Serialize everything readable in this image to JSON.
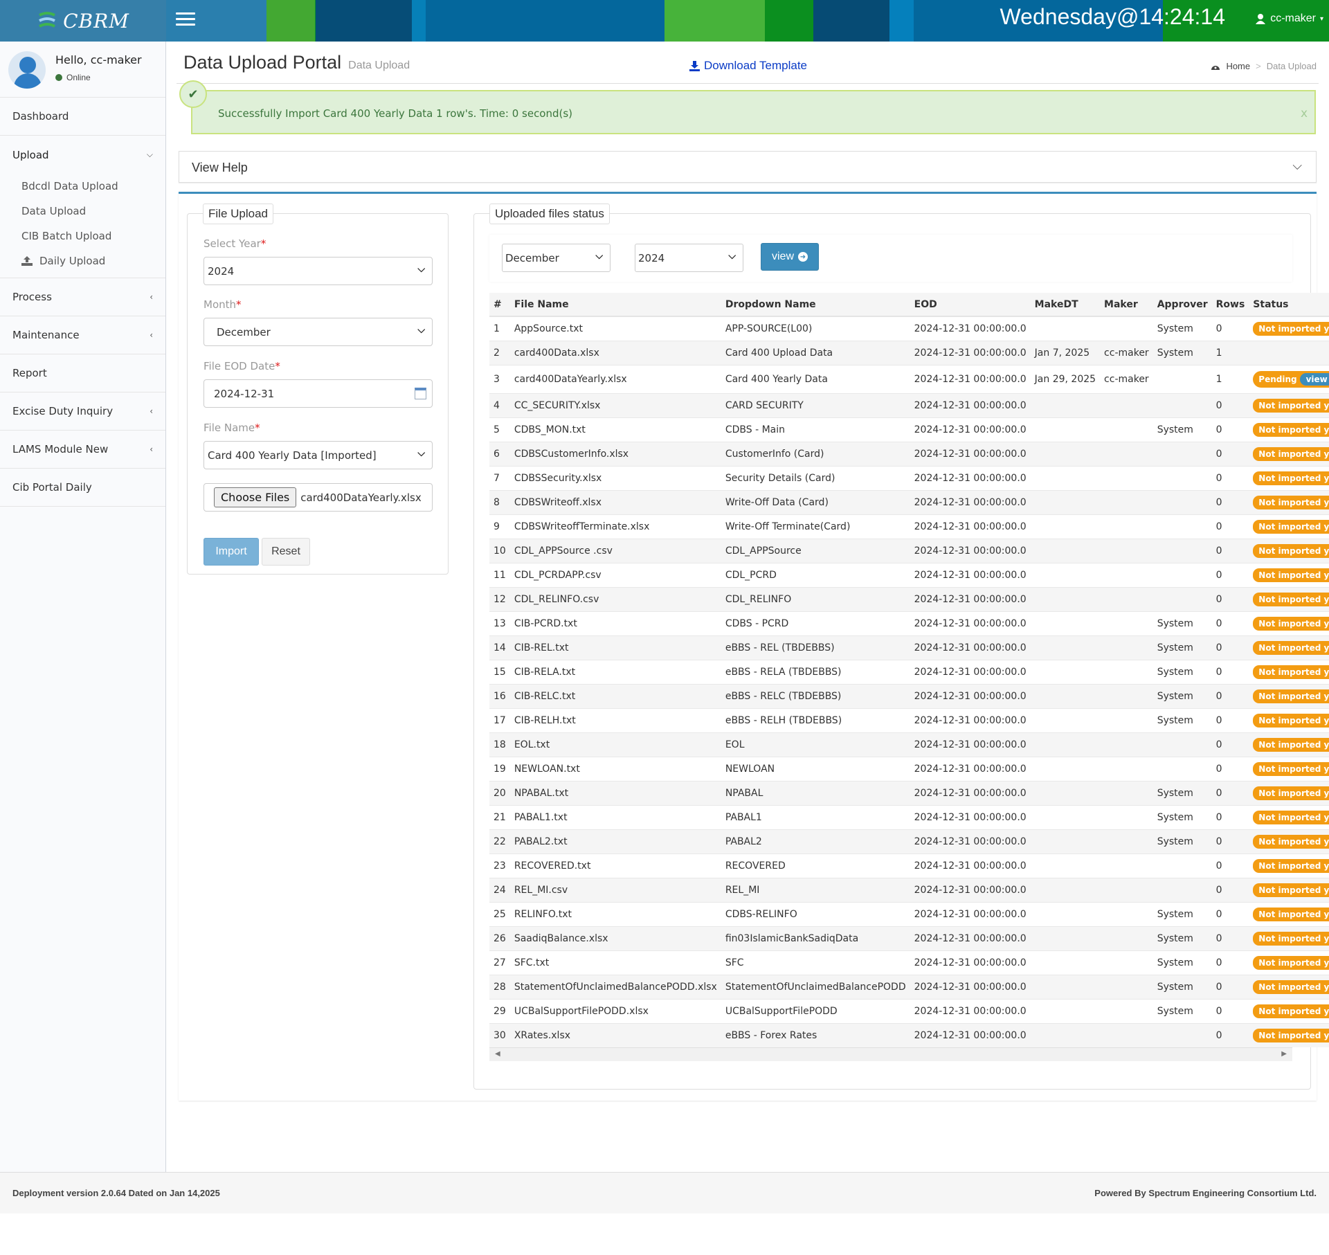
{
  "app": {
    "logo_text": "CBRM",
    "clock": "Wednesday@14:24:14",
    "user": "cc-maker"
  },
  "sidebar": {
    "greeting": "Hello, cc-maker",
    "status": "Online",
    "items": [
      {
        "label": "Dashboard"
      },
      {
        "label": "Upload"
      },
      {
        "label": "Process"
      },
      {
        "label": "Maintenance"
      },
      {
        "label": "Report"
      },
      {
        "label": "Excise Duty Inquiry"
      },
      {
        "label": "LAMS Module New"
      },
      {
        "label": "Cib Portal Daily"
      }
    ],
    "upload_sub": [
      {
        "label": "Bdcdl Data Upload"
      },
      {
        "label": "Data Upload"
      },
      {
        "label": "CIB Batch Upload"
      },
      {
        "label": "Daily Upload"
      }
    ]
  },
  "header": {
    "title": "Data Upload Portal",
    "subtitle": "Data Upload",
    "download": "Download Template",
    "breadcrumb_home": "Home",
    "breadcrumb_sep": ">",
    "breadcrumb_current": "Data Upload"
  },
  "alert": {
    "message": "Successfully Import Card 400 Yearly Data 1 row's. Time: 0 second(s)",
    "close": "x"
  },
  "help": {
    "label": "View Help"
  },
  "file_upload": {
    "legend": "File Upload",
    "year_label": "Select Year",
    "year_value": "2024",
    "month_label": "Month",
    "month_value": "December",
    "eod_label": "File EOD Date",
    "eod_value": "2024-12-31",
    "filename_label": "File Name",
    "filename_value": "Card 400 Yearly Data [Imported]",
    "choose_label": "Choose Files",
    "chosen_file": "card400DataYearly.xlsx",
    "required_mark": "*",
    "import_label": "Import",
    "reset_label": "Reset"
  },
  "status_panel": {
    "legend": "Uploaded files status",
    "month_value": "December",
    "year_value": "2024",
    "view_label": "view"
  },
  "table": {
    "headers": [
      "#",
      "File Name",
      "Dropdown Name",
      "EOD",
      "MakeDT",
      "Maker",
      "Approver",
      "Rows",
      "Status"
    ],
    "rows": [
      [
        "1",
        "AppSource.txt",
        "APP-SOURCE(L00)",
        "2024-12-31 00:00:00.0",
        "",
        "",
        "System",
        "0",
        "Not imported yet"
      ],
      [
        "2",
        "card400Data.xlsx",
        "Card 400 Upload Data",
        "2024-12-31 00:00:00.0",
        "Jan 7, 2025",
        "cc-maker",
        "System",
        "1",
        ""
      ],
      [
        "3",
        "card400DataYearly.xlsx",
        "Card 400 Yearly Data",
        "2024-12-31 00:00:00.0",
        "Jan 29, 2025",
        "cc-maker",
        "",
        "1",
        "Pending|view"
      ],
      [
        "4",
        "CC_SECURITY.xlsx",
        "CARD SECURITY",
        "2024-12-31 00:00:00.0",
        "",
        "",
        "",
        "0",
        "Not imported yet"
      ],
      [
        "5",
        "CDBS_MON.txt",
        "CDBS - Main",
        "2024-12-31 00:00:00.0",
        "",
        "",
        "System",
        "0",
        "Not imported yet"
      ],
      [
        "6",
        "CDBSCustomerInfo.xlsx",
        "CustomerInfo (Card)",
        "2024-12-31 00:00:00.0",
        "",
        "",
        "",
        "0",
        "Not imported yet"
      ],
      [
        "7",
        "CDBSSecurity.xlsx",
        "Security Details (Card)",
        "2024-12-31 00:00:00.0",
        "",
        "",
        "",
        "0",
        "Not imported yet"
      ],
      [
        "8",
        "CDBSWriteoff.xlsx",
        "Write-Off Data (Card)",
        "2024-12-31 00:00:00.0",
        "",
        "",
        "",
        "0",
        "Not imported yet"
      ],
      [
        "9",
        "CDBSWriteoffTerminate.xlsx",
        "Write-Off Terminate(Card)",
        "2024-12-31 00:00:00.0",
        "",
        "",
        "",
        "0",
        "Not imported yet"
      ],
      [
        "10",
        "CDL_APPSource .csv",
        "CDL_APPSource",
        "2024-12-31 00:00:00.0",
        "",
        "",
        "",
        "0",
        "Not imported yet"
      ],
      [
        "11",
        "CDL_PCRDAPP.csv",
        "CDL_PCRD",
        "2024-12-31 00:00:00.0",
        "",
        "",
        "",
        "0",
        "Not imported yet"
      ],
      [
        "12",
        "CDL_RELINFO.csv",
        "CDL_RELINFO",
        "2024-12-31 00:00:00.0",
        "",
        "",
        "",
        "0",
        "Not imported yet"
      ],
      [
        "13",
        "CIB-PCRD.txt",
        "CDBS - PCRD",
        "2024-12-31 00:00:00.0",
        "",
        "",
        "System",
        "0",
        "Not imported yet"
      ],
      [
        "14",
        "CIB-REL.txt",
        "eBBS - REL (TBDEBBS)",
        "2024-12-31 00:00:00.0",
        "",
        "",
        "System",
        "0",
        "Not imported yet"
      ],
      [
        "15",
        "CIB-RELA.txt",
        "eBBS - RELA (TBDEBBS)",
        "2024-12-31 00:00:00.0",
        "",
        "",
        "System",
        "0",
        "Not imported yet"
      ],
      [
        "16",
        "CIB-RELC.txt",
        "eBBS - RELC (TBDEBBS)",
        "2024-12-31 00:00:00.0",
        "",
        "",
        "System",
        "0",
        "Not imported yet"
      ],
      [
        "17",
        "CIB-RELH.txt",
        "eBBS - RELH (TBDEBBS)",
        "2024-12-31 00:00:00.0",
        "",
        "",
        "System",
        "0",
        "Not imported yet"
      ],
      [
        "18",
        "EOL.txt",
        "EOL",
        "2024-12-31 00:00:00.0",
        "",
        "",
        "",
        "0",
        "Not imported yet"
      ],
      [
        "19",
        "NEWLOAN.txt",
        "NEWLOAN",
        "2024-12-31 00:00:00.0",
        "",
        "",
        "",
        "0",
        "Not imported yet"
      ],
      [
        "20",
        "NPABAL.txt",
        "NPABAL",
        "2024-12-31 00:00:00.0",
        "",
        "",
        "System",
        "0",
        "Not imported yet"
      ],
      [
        "21",
        "PABAL1.txt",
        "PABAL1",
        "2024-12-31 00:00:00.0",
        "",
        "",
        "System",
        "0",
        "Not imported yet"
      ],
      [
        "22",
        "PABAL2.txt",
        "PABAL2",
        "2024-12-31 00:00:00.0",
        "",
        "",
        "System",
        "0",
        "Not imported yet"
      ],
      [
        "23",
        "RECOVERED.txt",
        "RECOVERED",
        "2024-12-31 00:00:00.0",
        "",
        "",
        "",
        "0",
        "Not imported yet"
      ],
      [
        "24",
        "REL_MI.csv",
        "REL_MI",
        "2024-12-31 00:00:00.0",
        "",
        "",
        "",
        "0",
        "Not imported yet"
      ],
      [
        "25",
        "RELINFO.txt",
        "CDBS-RELINFO",
        "2024-12-31 00:00:00.0",
        "",
        "",
        "System",
        "0",
        "Not imported yet"
      ],
      [
        "26",
        "SaadiqBalance.xlsx",
        "fin03IslamicBankSadiqData",
        "2024-12-31 00:00:00.0",
        "",
        "",
        "System",
        "0",
        "Not imported yet"
      ],
      [
        "27",
        "SFC.txt",
        "SFC",
        "2024-12-31 00:00:00.0",
        "",
        "",
        "System",
        "0",
        "Not imported yet"
      ],
      [
        "28",
        "StatementOfUnclaimedBalancePODD.xlsx",
        "StatementOfUnclaimedBalancePODD",
        "2024-12-31 00:00:00.0",
        "",
        "",
        "System",
        "0",
        "Not imported yet"
      ],
      [
        "29",
        "UCBalSupportFilePODD.xlsx",
        "UCBalSupportFilePODD",
        "2024-12-31 00:00:00.0",
        "",
        "",
        "System",
        "0",
        "Not imported yet"
      ],
      [
        "30",
        "XRates.xlsx",
        "eBBS - Forex Rates",
        "2024-12-31 00:00:00.0",
        "",
        "",
        "",
        "0",
        "Not imported yet"
      ]
    ]
  },
  "footer": {
    "left": "Deployment version 2.0.64 Dated on Jan 14,2025",
    "right": "Powered By Spectrum Engineering Consortium Ltd."
  },
  "colors": {
    "accent": "#3c8dbc",
    "badge": "#f39c12",
    "success_bg": "#dff0d8"
  }
}
